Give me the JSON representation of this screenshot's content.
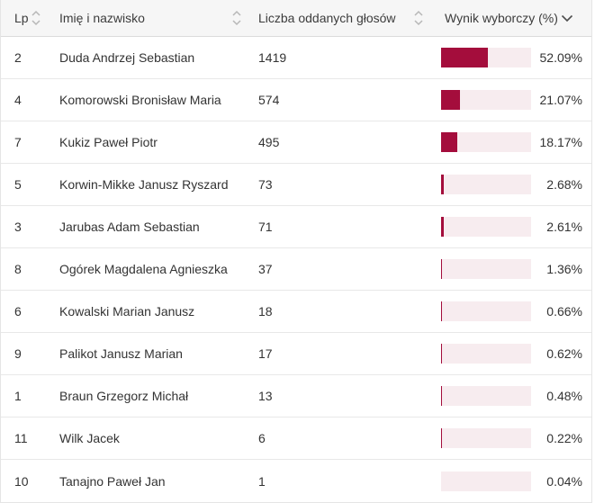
{
  "table": {
    "columns": [
      {
        "label": "Lp",
        "sort_state": "sortable"
      },
      {
        "label": "Imię i nazwisko",
        "sort_state": "sortable"
      },
      {
        "label": "Liczba oddanych głosów",
        "sort_state": "sortable"
      },
      {
        "label": "Wynik wyborczy (%)",
        "sort_state": "sorted-desc"
      }
    ],
    "rows": [
      {
        "lp": "2",
        "name": "Duda Andrzej Sebastian",
        "votes": "1419",
        "pct": 52.09,
        "pct_label": "52.09%"
      },
      {
        "lp": "4",
        "name": "Komorowski Bronisław Maria",
        "votes": "574",
        "pct": 21.07,
        "pct_label": "21.07%"
      },
      {
        "lp": "7",
        "name": "Kukiz Paweł Piotr",
        "votes": "495",
        "pct": 18.17,
        "pct_label": "18.17%"
      },
      {
        "lp": "5",
        "name": "Korwin-Mikke Janusz Ryszard",
        "votes": "73",
        "pct": 2.68,
        "pct_label": "2.68%"
      },
      {
        "lp": "3",
        "name": "Jarubas Adam Sebastian",
        "votes": "71",
        "pct": 2.61,
        "pct_label": "2.61%"
      },
      {
        "lp": "8",
        "name": "Ogórek Magdalena Agnieszka",
        "votes": "37",
        "pct": 1.36,
        "pct_label": "1.36%"
      },
      {
        "lp": "6",
        "name": "Kowalski Marian Janusz",
        "votes": "18",
        "pct": 0.66,
        "pct_label": "0.66%"
      },
      {
        "lp": "9",
        "name": "Palikot Janusz Marian",
        "votes": "17",
        "pct": 0.62,
        "pct_label": "0.62%"
      },
      {
        "lp": "1",
        "name": "Braun Grzegorz Michał",
        "votes": "13",
        "pct": 0.48,
        "pct_label": "0.48%"
      },
      {
        "lp": "11",
        "name": "Wilk Jacek",
        "votes": "6",
        "pct": 0.22,
        "pct_label": "0.22%"
      },
      {
        "lp": "10",
        "name": "Tanajno Paweł Jan",
        "votes": "1",
        "pct": 0.04,
        "pct_label": "0.04%"
      }
    ]
  },
  "colors": {
    "bar_fill": "#a40d3c",
    "bar_track": "#f7ecef",
    "header_bg": "#f6f6f6",
    "row_border": "#e8e8e8",
    "text": "#333333",
    "sortable_icon": "#b7b7b7",
    "sorted_icon": "#4d4d4d"
  },
  "chart_data": {
    "type": "table",
    "title": "",
    "columns": [
      "Lp",
      "Imię i nazwisko",
      "Liczba oddanych głosów",
      "Wynik wyborczy (%)"
    ],
    "rows": [
      [
        2,
        "Duda Andrzej Sebastian",
        1419,
        52.09
      ],
      [
        4,
        "Komorowski Bronisław Maria",
        574,
        21.07
      ],
      [
        7,
        "Kukiz Paweł Piotr",
        495,
        18.17
      ],
      [
        5,
        "Korwin-Mikke Janusz Ryszard",
        73,
        2.68
      ],
      [
        3,
        "Jarubas Adam Sebastian",
        71,
        2.61
      ],
      [
        8,
        "Ogórek Magdalena Agnieszka",
        37,
        1.36
      ],
      [
        6,
        "Kowalski Marian Janusz",
        18,
        0.66
      ],
      [
        9,
        "Palikot Janusz Marian",
        17,
        0.62
      ],
      [
        1,
        "Braun Grzegorz Michał",
        13,
        0.48
      ],
      [
        11,
        "Wilk Jacek",
        6,
        0.22
      ],
      [
        10,
        "Tanajno Paweł Jan",
        1,
        0.04
      ]
    ],
    "embedded_bar_column": "Wynik wyborczy (%)",
    "bar_axis_range": [
      0,
      100
    ],
    "sort": {
      "column": "Wynik wyborczy (%)",
      "direction": "desc"
    }
  }
}
